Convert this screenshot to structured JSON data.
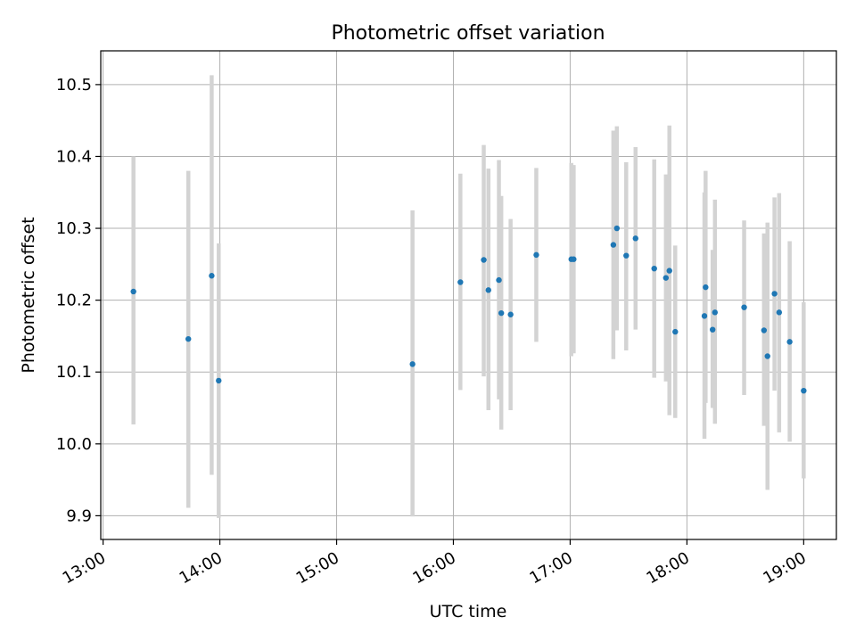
{
  "chart_data": {
    "type": "scatter",
    "title": "Photometric offset variation",
    "xlabel": "UTC time",
    "ylabel": "Photometric offset",
    "x_ticks": [
      "13:00",
      "14:00",
      "15:00",
      "16:00",
      "17:00",
      "18:00",
      "19:00"
    ],
    "x_tick_hours": [
      13,
      14,
      15,
      16,
      17,
      18,
      19
    ],
    "y_ticks": [
      9.9,
      10.0,
      10.1,
      10.2,
      10.3,
      10.4,
      10.5
    ],
    "y_tick_labels": [
      "9.9",
      "10.0",
      "10.1",
      "10.2",
      "10.3",
      "10.4",
      "10.5"
    ],
    "xlim": [
      12.98,
      19.28
    ],
    "ylim": [
      9.867,
      10.547
    ],
    "grid": true,
    "point_color": "#1f77b4",
    "errorbar_color": "#d3d3d3",
    "series": [
      {
        "points": [
          {
            "x": 13.26,
            "y": 10.212,
            "lo": 10.027,
            "hi": 10.4
          },
          {
            "x": 13.73,
            "y": 10.146,
            "lo": 9.911,
            "hi": 10.38
          },
          {
            "x": 13.93,
            "y": 10.234,
            "lo": 9.957,
            "hi": 10.513
          },
          {
            "x": 13.99,
            "y": 10.088,
            "lo": 9.897,
            "hi": 10.279
          },
          {
            "x": 15.65,
            "y": 10.111,
            "lo": 9.899,
            "hi": 10.325
          },
          {
            "x": 16.06,
            "y": 10.225,
            "lo": 10.075,
            "hi": 10.376
          },
          {
            "x": 16.26,
            "y": 10.256,
            "lo": 10.094,
            "hi": 10.416
          },
          {
            "x": 16.3,
            "y": 10.214,
            "lo": 10.047,
            "hi": 10.383
          },
          {
            "x": 16.39,
            "y": 10.228,
            "lo": 10.062,
            "hi": 10.395
          },
          {
            "x": 16.41,
            "y": 10.182,
            "lo": 10.02,
            "hi": 10.345
          },
          {
            "x": 16.49,
            "y": 10.18,
            "lo": 10.047,
            "hi": 10.313
          },
          {
            "x": 16.71,
            "y": 10.263,
            "lo": 10.142,
            "hi": 10.384
          },
          {
            "x": 17.01,
            "y": 10.257,
            "lo": 10.122,
            "hi": 10.391
          },
          {
            "x": 17.03,
            "y": 10.257,
            "lo": 10.126,
            "hi": 10.388
          },
          {
            "x": 17.37,
            "y": 10.277,
            "lo": 10.118,
            "hi": 10.436
          },
          {
            "x": 17.4,
            "y": 10.3,
            "lo": 10.158,
            "hi": 10.442
          },
          {
            "x": 17.48,
            "y": 10.262,
            "lo": 10.13,
            "hi": 10.392
          },
          {
            "x": 17.56,
            "y": 10.286,
            "lo": 10.159,
            "hi": 10.413
          },
          {
            "x": 17.72,
            "y": 10.244,
            "lo": 10.092,
            "hi": 10.396
          },
          {
            "x": 17.82,
            "y": 10.231,
            "lo": 10.087,
            "hi": 10.375
          },
          {
            "x": 17.85,
            "y": 10.241,
            "lo": 10.04,
            "hi": 10.443
          },
          {
            "x": 17.9,
            "y": 10.156,
            "lo": 10.036,
            "hi": 10.276
          },
          {
            "x": 18.15,
            "y": 10.178,
            "lo": 10.007,
            "hi": 10.35
          },
          {
            "x": 18.16,
            "y": 10.218,
            "lo": 10.057,
            "hi": 10.38
          },
          {
            "x": 18.22,
            "y": 10.159,
            "lo": 10.05,
            "hi": 10.27
          },
          {
            "x": 18.24,
            "y": 10.183,
            "lo": 10.028,
            "hi": 10.34
          },
          {
            "x": 18.49,
            "y": 10.19,
            "lo": 10.068,
            "hi": 10.311
          },
          {
            "x": 18.66,
            "y": 10.158,
            "lo": 10.025,
            "hi": 10.293
          },
          {
            "x": 18.69,
            "y": 10.122,
            "lo": 9.936,
            "hi": 10.308
          },
          {
            "x": 18.75,
            "y": 10.209,
            "lo": 10.074,
            "hi": 10.343
          },
          {
            "x": 18.79,
            "y": 10.183,
            "lo": 10.016,
            "hi": 10.349
          },
          {
            "x": 18.88,
            "y": 10.142,
            "lo": 10.003,
            "hi": 10.282
          },
          {
            "x": 19.0,
            "y": 10.074,
            "lo": 9.952,
            "hi": 10.197
          }
        ]
      }
    ]
  }
}
